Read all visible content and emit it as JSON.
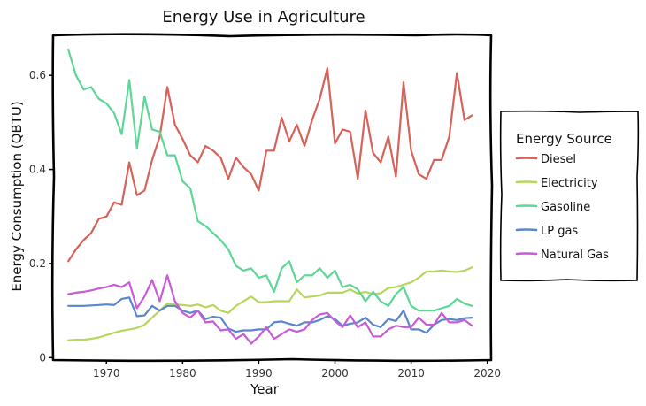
{
  "chart_data": {
    "type": "line",
    "title": "Energy Use in Agriculture",
    "xlabel": "Year",
    "ylabel": "Energy Consumption (QBTU)",
    "xlim": [
      1963,
      2020.5
    ],
    "ylim": [
      -0.005,
      0.685
    ],
    "xticks": [
      1970,
      1980,
      1990,
      2000,
      2010,
      2020
    ],
    "yticks": [
      0,
      0.2,
      0.4,
      0.6
    ],
    "ytick_labels": [
      "0",
      "0.2",
      "0.4",
      "0.6"
    ],
    "legend": {
      "title": "Energy Source",
      "position": "right"
    },
    "x": [
      1965,
      1966,
      1967,
      1968,
      1969,
      1970,
      1971,
      1972,
      1973,
      1974,
      1975,
      1976,
      1977,
      1978,
      1979,
      1980,
      1981,
      1982,
      1983,
      1984,
      1985,
      1986,
      1987,
      1988,
      1989,
      1990,
      1991,
      1992,
      1993,
      1994,
      1995,
      1996,
      1997,
      1998,
      1999,
      2000,
      2001,
      2002,
      2003,
      2004,
      2005,
      2006,
      2007,
      2008,
      2009,
      2010,
      2011,
      2012,
      2013,
      2014,
      2015,
      2016,
      2017,
      2018
    ],
    "series": [
      {
        "name": "Diesel",
        "color": "#d6625a",
        "values": [
          0.205,
          0.23,
          0.25,
          0.265,
          0.295,
          0.3,
          0.33,
          0.325,
          0.415,
          0.345,
          0.355,
          0.42,
          0.47,
          0.575,
          0.495,
          0.465,
          0.43,
          0.415,
          0.45,
          0.44,
          0.425,
          0.38,
          0.425,
          0.405,
          0.39,
          0.355,
          0.44,
          0.44,
          0.51,
          0.46,
          0.495,
          0.45,
          0.505,
          0.55,
          0.615,
          0.455,
          0.485,
          0.48,
          0.38,
          0.525,
          0.435,
          0.415,
          0.47,
          0.385,
          0.585,
          0.44,
          0.39,
          0.38,
          0.42,
          0.42,
          0.47,
          0.605,
          0.505,
          0.515
        ]
      },
      {
        "name": "Electricity",
        "color": "#b7d75b",
        "values": [
          0.037,
          0.038,
          0.038,
          0.04,
          0.043,
          0.048,
          0.053,
          0.057,
          0.06,
          0.063,
          0.07,
          0.085,
          0.1,
          0.115,
          0.113,
          0.112,
          0.11,
          0.113,
          0.107,
          0.112,
          0.1,
          0.095,
          0.11,
          0.12,
          0.13,
          0.118,
          0.118,
          0.12,
          0.12,
          0.12,
          0.145,
          0.128,
          0.13,
          0.132,
          0.138,
          0.138,
          0.138,
          0.145,
          0.136,
          0.14,
          0.135,
          0.137,
          0.148,
          0.15,
          0.155,
          0.16,
          0.17,
          0.183,
          0.183,
          0.185,
          0.183,
          0.182,
          0.185,
          0.192
        ]
      },
      {
        "name": "Gasoline",
        "color": "#5ed695",
        "values": [
          0.655,
          0.6,
          0.57,
          0.575,
          0.55,
          0.54,
          0.52,
          0.475,
          0.59,
          0.445,
          0.555,
          0.485,
          0.48,
          0.43,
          0.43,
          0.375,
          0.36,
          0.29,
          0.28,
          0.265,
          0.25,
          0.23,
          0.195,
          0.185,
          0.19,
          0.17,
          0.175,
          0.14,
          0.19,
          0.205,
          0.16,
          0.175,
          0.175,
          0.19,
          0.17,
          0.185,
          0.15,
          0.155,
          0.145,
          0.12,
          0.14,
          0.12,
          0.11,
          0.135,
          0.15,
          0.11,
          0.1,
          0.1,
          0.1,
          0.105,
          0.11,
          0.125,
          0.115,
          0.11
        ]
      },
      {
        "name": "LP gas",
        "color": "#5a86cc",
        "values": [
          0.11,
          0.11,
          0.11,
          0.111,
          0.112,
          0.113,
          0.112,
          0.125,
          0.128,
          0.088,
          0.09,
          0.11,
          0.1,
          0.11,
          0.11,
          0.1,
          0.095,
          0.1,
          0.082,
          0.087,
          0.085,
          0.062,
          0.055,
          0.058,
          0.058,
          0.06,
          0.06,
          0.075,
          0.077,
          0.072,
          0.068,
          0.075,
          0.075,
          0.08,
          0.088,
          0.082,
          0.068,
          0.072,
          0.075,
          0.085,
          0.07,
          0.065,
          0.082,
          0.078,
          0.1,
          0.06,
          0.06,
          0.053,
          0.07,
          0.08,
          0.082,
          0.08,
          0.084,
          0.085
        ]
      },
      {
        "name": "Natural Gas",
        "color": "#c95ad8",
        "values": [
          0.135,
          0.138,
          0.14,
          0.143,
          0.147,
          0.15,
          0.155,
          0.15,
          0.16,
          0.105,
          0.13,
          0.165,
          0.12,
          0.175,
          0.12,
          0.095,
          0.085,
          0.1,
          0.075,
          0.077,
          0.058,
          0.06,
          0.04,
          0.05,
          0.03,
          0.045,
          0.065,
          0.04,
          0.05,
          0.06,
          0.055,
          0.06,
          0.08,
          0.092,
          0.095,
          0.078,
          0.065,
          0.09,
          0.065,
          0.075,
          0.045,
          0.045,
          0.06,
          0.068,
          0.065,
          0.065,
          0.085,
          0.07,
          0.07,
          0.095,
          0.075,
          0.075,
          0.08,
          0.068
        ]
      }
    ]
  }
}
